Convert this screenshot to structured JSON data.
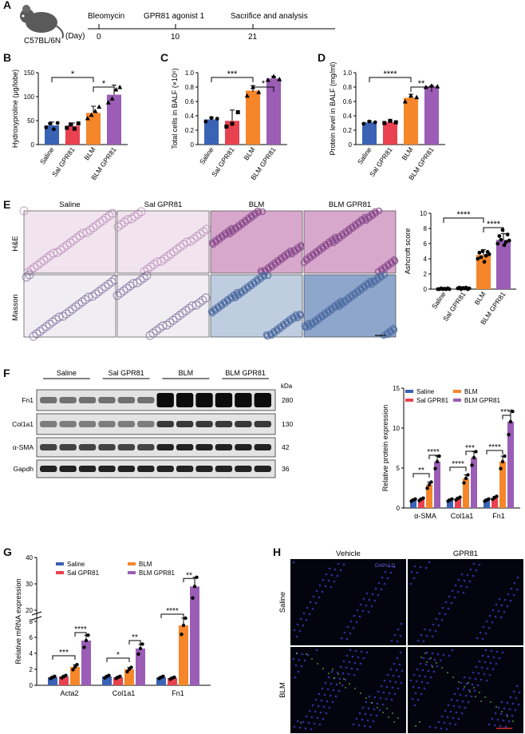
{
  "colors": {
    "blue": "#3a62b5",
    "red": "#e8414f",
    "orange": "#f5862a",
    "purple": "#9b5db5",
    "sig": "#000000"
  },
  "panels": {
    "A": "A",
    "B": "B",
    "C": "C",
    "D": "D",
    "E": "E",
    "F": "F",
    "G": "G",
    "H": "H"
  },
  "timeline": {
    "mouse": "C57BL/6N",
    "day_label": "(Day)",
    "events": [
      {
        "label": "Bleomycin",
        "day": "0"
      },
      {
        "label": "GPR81 agonist 1",
        "day": "10"
      },
      {
        "label": "Sacrifice and analysis",
        "day": "21"
      }
    ]
  },
  "groups": [
    "Saline",
    "Sal GPR81",
    "BLM",
    "BLM GPR81"
  ],
  "chart_data": [
    {
      "panel": "B",
      "type": "bar",
      "ylabel": "Hydroxyproline (μg/lobe)",
      "ylim": [
        0,
        150
      ],
      "yticks": [
        "0",
        "50",
        "100",
        "150"
      ],
      "categories": [
        "Saline",
        "Sal GPR81",
        "BLM",
        "BLM GPR81"
      ],
      "values": [
        40,
        39,
        66,
        104
      ],
      "errors": [
        7,
        6,
        14,
        20
      ],
      "points": [
        [
          36,
          44,
          32,
          45
        ],
        [
          35,
          42,
          33,
          44
        ],
        [
          55,
          62,
          70,
          79
        ],
        [
          88,
          96,
          115,
          120
        ]
      ],
      "sig": [
        {
          "a": 0,
          "b": 2,
          "label": "*"
        },
        {
          "a": 2,
          "b": 3,
          "label": "*"
        }
      ]
    },
    {
      "panel": "C",
      "type": "bar",
      "ylabel": "Total cells in BALF (×10⁶)",
      "ylim": [
        0,
        1.0
      ],
      "yticks": [
        "0",
        "0.2",
        "0.4",
        "0.6",
        "0.8",
        "1.0"
      ],
      "categories": [
        "Saline",
        "Sal GPR81",
        "BLM",
        "BLM GPR81"
      ],
      "values": [
        0.35,
        0.33,
        0.75,
        0.92
      ],
      "errors": [
        0.03,
        0.15,
        0.07,
        0.03
      ],
      "points": [
        [
          0.32,
          0.37,
          0.36
        ],
        [
          0.25,
          0.29,
          0.45
        ],
        [
          0.68,
          0.8,
          0.73
        ],
        [
          0.9,
          0.95,
          0.91
        ]
      ],
      "sig": [
        {
          "a": 0,
          "b": 2,
          "label": "***"
        },
        {
          "a": 2,
          "b": 3,
          "label": "*"
        }
      ]
    },
    {
      "panel": "D",
      "type": "bar",
      "ylabel": "Protein level in BALF (mg/ml)",
      "ylim": [
        0,
        1.0
      ],
      "yticks": [
        "0",
        "0.2",
        "0.4",
        "0.6",
        "0.8",
        "1.0"
      ],
      "categories": [
        "Saline",
        "Sal GPR81",
        "BLM",
        "BLM GPR81"
      ],
      "values": [
        0.31,
        0.31,
        0.65,
        0.81
      ],
      "errors": [
        0.02,
        0.02,
        0.05,
        0.01
      ],
      "points": [
        [
          0.29,
          0.32,
          0.31
        ],
        [
          0.3,
          0.33,
          0.31
        ],
        [
          0.6,
          0.68,
          0.66
        ],
        [
          0.8,
          0.82,
          0.81
        ]
      ],
      "sig": [
        {
          "a": 0,
          "b": 2,
          "label": "****"
        },
        {
          "a": 2,
          "b": 3,
          "label": "**"
        }
      ]
    },
    {
      "panel": "E",
      "type": "bar",
      "ylabel": "Ashcroft score",
      "ylim": [
        0,
        10
      ],
      "yticks": [
        "0",
        "2",
        "4",
        "6",
        "8",
        "10"
      ],
      "categories": [
        "Saline",
        "Sal GPR81",
        "BLM",
        "BLM GPR81"
      ],
      "values": [
        0.05,
        0.12,
        4.5,
        6.5
      ],
      "errors": [
        0.05,
        0.1,
        0.7,
        0.8
      ],
      "points": [
        [
          0,
          0,
          0.1,
          0,
          0.05,
          0,
          0.1,
          0
        ],
        [
          0.1,
          0.2,
          0,
          0.15,
          0.1,
          0.2,
          0,
          0.1
        ],
        [
          4,
          4.8,
          4.2,
          5,
          3.6,
          4.4,
          4.9,
          4.6
        ],
        [
          6,
          7,
          6.5,
          7.8,
          5.8,
          6.2,
          7.2,
          6.4
        ]
      ],
      "sig": [
        {
          "a": 0,
          "b": 2,
          "label": "****"
        },
        {
          "a": 2,
          "b": 3,
          "label": "****"
        }
      ]
    },
    {
      "panel": "F",
      "type": "bar",
      "ylabel": "Relative protein expression",
      "ylim": [
        0,
        15
      ],
      "yticks": [
        "0",
        "5",
        "10",
        "15"
      ],
      "categories": [
        "α-SMA",
        "Col1a1",
        "Fn1"
      ],
      "series": [
        {
          "name": "Saline",
          "values": [
            1,
            1,
            1
          ]
        },
        {
          "name": "Sal GPR81",
          "values": [
            1.1,
            1.2,
            1.3
          ]
        },
        {
          "name": "BLM",
          "values": [
            2.9,
            3.7,
            5.8
          ]
        },
        {
          "name": "BLM GPR81",
          "values": [
            5.8,
            6.3,
            10.8
          ]
        }
      ],
      "sig": [
        {
          "cat": 0,
          "a": 0,
          "b": 2,
          "label": "**"
        },
        {
          "cat": 0,
          "a": 2,
          "b": 3,
          "label": "****"
        },
        {
          "cat": 1,
          "a": 0,
          "b": 2,
          "label": "****"
        },
        {
          "cat": 1,
          "a": 2,
          "b": 3,
          "label": "***"
        },
        {
          "cat": 2,
          "a": 0,
          "b": 2,
          "label": "****"
        },
        {
          "cat": 2,
          "a": 2,
          "b": 3,
          "label": "****"
        }
      ]
    },
    {
      "panel": "G",
      "type": "bar",
      "ylabel": "Relative mRNA expression",
      "yticks": [
        "0",
        "2",
        "4",
        "6",
        "8",
        "20",
        "30",
        "40"
      ],
      "categories": [
        "Acta2",
        "Col1a1",
        "Fn1"
      ],
      "series": [
        {
          "name": "Saline",
          "values": [
            1,
            1.1,
            1
          ]
        },
        {
          "name": "Sal GPR81",
          "values": [
            1.1,
            1,
            0.9
          ]
        },
        {
          "name": "BLM",
          "values": [
            2.3,
            2,
            7.5
          ]
        },
        {
          "name": "BLM GPR81",
          "values": [
            5.6,
            4.6,
            29
          ]
        }
      ],
      "sig": [
        {
          "cat": 0,
          "a": 0,
          "b": 2,
          "label": "***"
        },
        {
          "cat": 0,
          "a": 2,
          "b": 3,
          "label": "****"
        },
        {
          "cat": 1,
          "a": 0,
          "b": 2,
          "label": "*"
        },
        {
          "cat": 1,
          "a": 2,
          "b": 3,
          "label": "**"
        },
        {
          "cat": 2,
          "a": 0,
          "b": 2,
          "label": "****"
        },
        {
          "cat": 2,
          "a": 2,
          "b": 3,
          "label": "**"
        }
      ]
    }
  ],
  "histology": {
    "cols": [
      "Saline",
      "Sal GPR81",
      "BLM",
      "BLM GPR81"
    ],
    "rows": [
      "H&E",
      "Masson"
    ]
  },
  "western": {
    "groups": [
      "Saline",
      "Sal GPR81",
      "BLM",
      "BLM GPR81"
    ],
    "kda_label": "kDa",
    "rows": [
      {
        "name": "Fn1",
        "kda": "280"
      },
      {
        "name": "Col1a1",
        "kda": "130"
      },
      {
        "name": "α-SMA",
        "kda": "42"
      },
      {
        "name": "Gapdh",
        "kda": "36"
      }
    ]
  },
  "fluorescence": {
    "cols": [
      "Vehicle",
      "GPR81"
    ],
    "rows": [
      "Saline",
      "BLM"
    ],
    "stain_label": "DAPI LD"
  }
}
